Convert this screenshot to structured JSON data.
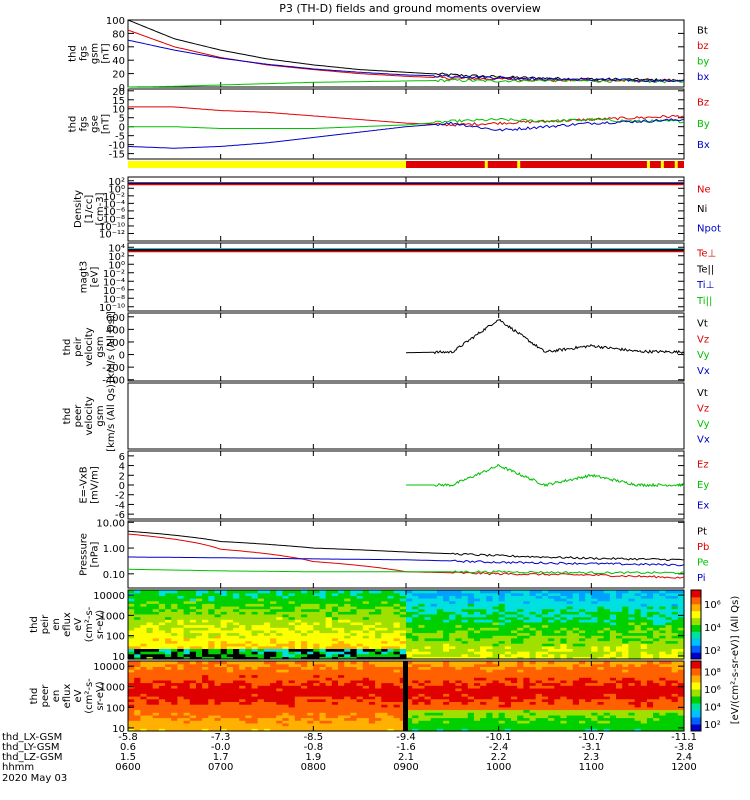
{
  "title": "P3 (TH-D) fields and ground moments overview",
  "colors": {
    "black": "#000000",
    "red": "#e00000",
    "green": "#00c000",
    "blue": "#0000c8",
    "yellow": "#ffff00",
    "bg": "#ffffff"
  },
  "panels": [
    {
      "id": "fgs-gsm-mag",
      "ylabel": [
        "thd",
        "fgs",
        "gsm",
        "[nT]"
      ],
      "log": false,
      "ylim": [
        0,
        100
      ],
      "yticks": [
        {
          "v": 0,
          "t": "0"
        },
        {
          "v": 20,
          "t": "20"
        },
        {
          "v": 40,
          "t": "40"
        },
        {
          "v": 60,
          "t": "60"
        },
        {
          "v": 80,
          "t": "80"
        },
        {
          "v": 100,
          "t": "100"
        }
      ],
      "legend": [
        {
          "t": "Bt",
          "c": "black"
        },
        {
          "t": "bz",
          "c": "red"
        },
        {
          "t": "by",
          "c": "green"
        },
        {
          "t": "bx",
          "c": "blue"
        }
      ]
    },
    {
      "id": "fgs-gse",
      "ylabel": [
        "thd",
        "fgs",
        "gse",
        "[nT]"
      ],
      "log": false,
      "ylim": [
        -18,
        21
      ],
      "yticks": [
        {
          "v": -15,
          "t": "-15"
        },
        {
          "v": -10,
          "t": "-10"
        },
        {
          "v": -5,
          "t": "-5"
        },
        {
          "v": 0,
          "t": "0"
        },
        {
          "v": 5,
          "t": "5"
        },
        {
          "v": 10,
          "t": "10"
        },
        {
          "v": 15,
          "t": "15"
        },
        {
          "v": 20,
          "t": "20"
        }
      ],
      "legend": [
        {
          "t": "Bz",
          "c": "red"
        },
        {
          "t": "By",
          "c": "green"
        },
        {
          "t": "Bx",
          "c": "blue"
        }
      ]
    },
    {
      "id": "density",
      "ylabel": [
        "Density",
        "[1/cc]",
        "[cm-3]"
      ],
      "log": true,
      "ylim": [
        -14,
        3
      ],
      "yticks": [
        {
          "v": 2,
          "t": "10²"
        },
        {
          "v": 0,
          "t": "10⁰"
        },
        {
          "v": -2,
          "t": "10⁻²"
        },
        {
          "v": -4,
          "t": "10⁻⁴"
        },
        {
          "v": -6,
          "t": "10⁻⁶"
        },
        {
          "v": -8,
          "t": "10⁻⁸"
        },
        {
          "v": -10,
          "t": "10⁻¹⁰"
        },
        {
          "v": -12,
          "t": "10⁻¹²"
        }
      ],
      "legend": [
        {
          "t": "Ne",
          "c": "red"
        },
        {
          "t": "Ni",
          "c": "black"
        },
        {
          "t": "Npot",
          "c": "blue"
        }
      ]
    },
    {
      "id": "temperature",
      "ylabel": [
        "magt3",
        "[eV]"
      ],
      "log": true,
      "ylim": [
        -11,
        5
      ],
      "yticks": [
        {
          "v": 4,
          "t": "10⁴"
        },
        {
          "v": 2,
          "t": "10²"
        },
        {
          "v": 0,
          "t": "10⁰"
        },
        {
          "v": -2,
          "t": "10⁻²"
        },
        {
          "v": -4,
          "t": "10⁻⁴"
        },
        {
          "v": -6,
          "t": "10⁻⁶"
        },
        {
          "v": -8,
          "t": "10⁻⁸"
        },
        {
          "v": -10,
          "t": "10⁻¹⁰"
        }
      ],
      "legend": [
        {
          "t": "Te⊥",
          "c": "red"
        },
        {
          "t": "Te||",
          "c": "black"
        },
        {
          "t": "Ti⊥",
          "c": "blue"
        },
        {
          "t": "Ti||",
          "c": "green"
        }
      ]
    },
    {
      "id": "ion-velocity",
      "ylabel": [
        "thd",
        "peir",
        "velocity",
        "gsm",
        "[km/s (All Qs)]"
      ],
      "log": false,
      "ylim": [
        -420,
        660
      ],
      "yticks": [
        {
          "v": -400,
          "t": "-400"
        },
        {
          "v": -200,
          "t": "-200"
        },
        {
          "v": 0,
          "t": "0"
        },
        {
          "v": 200,
          "t": "200"
        },
        {
          "v": 400,
          "t": "400"
        },
        {
          "v": 600,
          "t": "600"
        }
      ],
      "legend": [
        {
          "t": "Vt",
          "c": "black"
        },
        {
          "t": "Vz",
          "c": "red"
        },
        {
          "t": "Vy",
          "c": "green"
        },
        {
          "t": "Vx",
          "c": "blue"
        }
      ]
    },
    {
      "id": "electron-velocity",
      "ylabel": [
        "thd",
        "peer",
        "velocity",
        "gsm",
        "[km/s (All Qs)]"
      ],
      "log": false,
      "ylim": [
        -1,
        1
      ],
      "yticks": [],
      "legend": [
        {
          "t": "Vt",
          "c": "black"
        },
        {
          "t": "Vz",
          "c": "red"
        },
        {
          "t": "Vy",
          "c": "green"
        },
        {
          "t": "Vx",
          "c": "blue"
        }
      ]
    },
    {
      "id": "e-field",
      "ylabel": [
        "E=-VxB",
        "[mV/m]"
      ],
      "log": false,
      "ylim": [
        -7,
        7
      ],
      "yticks": [
        {
          "v": -6,
          "t": "-6"
        },
        {
          "v": -4,
          "t": "-4"
        },
        {
          "v": -2,
          "t": "-2"
        },
        {
          "v": 0,
          "t": "0"
        },
        {
          "v": 2,
          "t": "2"
        },
        {
          "v": 4,
          "t": "4"
        },
        {
          "v": 6,
          "t": "6"
        }
      ],
      "legend": [
        {
          "t": "Ez",
          "c": "red"
        },
        {
          "t": "Ey",
          "c": "green"
        },
        {
          "t": "Ex",
          "c": "blue"
        }
      ]
    },
    {
      "id": "pressure",
      "ylabel": [
        "Pressure",
        "[nPa]"
      ],
      "log": true,
      "ylim": [
        -1.55,
        1.05
      ],
      "yticks": [
        {
          "v": 1,
          "t": "10.00"
        },
        {
          "v": 0,
          "t": "1.00"
        },
        {
          "v": -1,
          "t": "0.10"
        }
      ],
      "legend": [
        {
          "t": "Pt",
          "c": "black"
        },
        {
          "t": "Pb",
          "c": "red"
        },
        {
          "t": "Pe",
          "c": "green"
        },
        {
          "t": "Pi",
          "c": "blue"
        }
      ]
    },
    {
      "id": "ion-spectrogram",
      "ylabel": [
        "thd",
        "peir",
        "en",
        "eflux",
        "eV",
        "(cm²-s-",
        "sr-eV)"
      ],
      "log": true,
      "ylim": [
        0.85,
        4.25
      ],
      "yticks": [
        {
          "v": 1,
          "t": "10"
        },
        {
          "v": 2,
          "t": "100"
        },
        {
          "v": 3,
          "t": "1000"
        },
        {
          "v": 4,
          "t": "10000"
        }
      ],
      "legend": []
    },
    {
      "id": "electron-spectrogram",
      "ylabel": [
        "thd",
        "peer",
        "en",
        "eflux",
        "eV",
        "(cm²-s-",
        "sr-eV)"
      ],
      "log": true,
      "ylim": [
        0.85,
        4.25
      ],
      "yticks": [
        {
          "v": 1,
          "t": "10"
        },
        {
          "v": 2,
          "t": "100"
        },
        {
          "v": 3,
          "t": "1000"
        },
        {
          "v": 4,
          "t": "10000"
        }
      ],
      "legend": []
    }
  ],
  "colorbars": [
    {
      "id": "ion-cbar",
      "ticks": [
        "10⁶",
        "10⁴",
        "10²"
      ]
    },
    {
      "id": "electron-cbar",
      "ticks": [
        "10⁸",
        "10⁶",
        "10⁴",
        "10²"
      ]
    }
  ],
  "colorbar_label": "[eV/(cm²-s-sr-eV)] (All Qs)",
  "xaxis": {
    "rows": [
      {
        "label": "thd_LX-GSM",
        "values": [
          "-5.8",
          "-7.3",
          "-8.5",
          "-9.4",
          "-10.1",
          "-10.7",
          "-11.1"
        ]
      },
      {
        "label": "thd_LY-GSM",
        "values": [
          "0.6",
          "-0.0",
          "-0.8",
          "-1.6",
          "-2.4",
          "-3.1",
          "-3.8"
        ]
      },
      {
        "label": "thd_LZ-GSM",
        "values": [
          "1.5",
          "1.7",
          "1.9",
          "2.1",
          "2.2",
          "2.3",
          "2.4"
        ]
      },
      {
        "label": "hhmm",
        "values": [
          "0600",
          "0700",
          "0800",
          "0900",
          "1000",
          "1100",
          "1200"
        ]
      }
    ],
    "date": "2020 May 03",
    "hours": [
      6,
      7,
      8,
      9,
      10,
      11,
      12
    ]
  },
  "chart_data": {
    "type": "line",
    "x_range_hours": [
      6,
      12
    ],
    "title": "P3 (TH-D) fields and ground moments overview",
    "series": [
      {
        "panel": "fgs-gsm-mag",
        "name": "Bt",
        "t": [
          6,
          6.5,
          7,
          7.5,
          8,
          8.5,
          9,
          9.5,
          10,
          10.5,
          11,
          11.5,
          12
        ],
        "v": [
          100,
          72,
          55,
          42,
          33,
          26,
          22,
          18,
          15,
          13,
          12,
          11,
          10
        ]
      },
      {
        "panel": "fgs-gsm-mag",
        "name": "bz",
        "t": [
          6,
          6.5,
          7,
          7.5,
          8,
          8.5,
          9,
          9.5,
          10,
          10.5,
          11,
          11.5,
          12
        ],
        "v": [
          85,
          60,
          44,
          33,
          26,
          20,
          16,
          13,
          12,
          10,
          10,
          9,
          9
        ]
      },
      {
        "panel": "fgs-gsm-mag",
        "name": "by",
        "t": [
          6,
          6.5,
          7,
          7.5,
          8,
          8.5,
          9,
          9.5,
          10,
          10.5,
          11,
          11.5,
          12
        ],
        "v": [
          0,
          1,
          3,
          5,
          7,
          8,
          9,
          10,
          9,
          10,
          9,
          9,
          8
        ]
      },
      {
        "panel": "fgs-gsm-mag",
        "name": "bx",
        "t": [
          6,
          6.5,
          7,
          7.5,
          8,
          8.5,
          9,
          9.5,
          10,
          10.5,
          11,
          11.5,
          12
        ],
        "v": [
          70,
          55,
          43,
          34,
          27,
          22,
          18,
          16,
          14,
          12,
          11,
          10,
          9
        ]
      },
      {
        "panel": "fgs-gse",
        "name": "Bz",
        "t": [
          6,
          6.5,
          7,
          7.5,
          8,
          8.5,
          9,
          9.5,
          10,
          10.5,
          11,
          11.5,
          12
        ],
        "v": [
          11,
          11,
          9,
          8,
          6,
          4,
          2,
          1,
          2,
          3,
          4,
          5,
          6
        ]
      },
      {
        "panel": "fgs-gse",
        "name": "By",
        "t": [
          6,
          6.5,
          7,
          7.5,
          8,
          8.5,
          9,
          9.5,
          10,
          10.5,
          11,
          11.5,
          12
        ],
        "v": [
          0,
          0,
          -1,
          -1,
          -1,
          0,
          1,
          3,
          4,
          3,
          4,
          3,
          3
        ]
      },
      {
        "panel": "fgs-gse",
        "name": "Bx",
        "t": [
          6,
          6.5,
          7,
          7.5,
          8,
          8.5,
          9,
          9.5,
          10,
          10.5,
          11,
          11.5,
          12
        ],
        "v": [
          -11,
          -12,
          -11,
          -9,
          -6,
          -3,
          0,
          2,
          -2,
          0,
          2,
          3,
          4
        ]
      },
      {
        "panel": "ion-velocity",
        "name": "Vt",
        "t": [
          9,
          9.5,
          10,
          10.5,
          11,
          11.5,
          12
        ],
        "v": [
          30,
          40,
          560,
          40,
          140,
          50,
          40
        ]
      },
      {
        "panel": "e-field",
        "name": "Ey",
        "t": [
          9,
          9.5,
          10,
          10.5,
          11,
          11.5,
          12
        ],
        "v": [
          0,
          0,
          4,
          0,
          2,
          0,
          0
        ]
      },
      {
        "panel": "pressure",
        "name": "Pt",
        "t": [
          6,
          7,
          8,
          9,
          10,
          11,
          12
        ],
        "v": [
          4.5,
          1.8,
          1.0,
          0.7,
          0.5,
          0.4,
          0.35
        ]
      },
      {
        "panel": "pressure",
        "name": "Pb",
        "t": [
          6,
          7,
          8,
          9,
          10,
          11,
          12
        ],
        "v": [
          3.5,
          0.9,
          0.3,
          0.12,
          0.1,
          0.09,
          0.07
        ]
      },
      {
        "panel": "pressure",
        "name": "Pe",
        "t": [
          6,
          7,
          8,
          9,
          10,
          11,
          12
        ],
        "v": [
          0.15,
          0.13,
          0.12,
          0.12,
          0.12,
          0.11,
          0.11
        ]
      },
      {
        "panel": "pressure",
        "name": "Pi",
        "t": [
          6,
          7,
          8,
          9,
          10,
          11,
          12
        ],
        "v": [
          0.45,
          0.42,
          0.38,
          0.35,
          0.28,
          0.25,
          0.22
        ]
      }
    ]
  }
}
